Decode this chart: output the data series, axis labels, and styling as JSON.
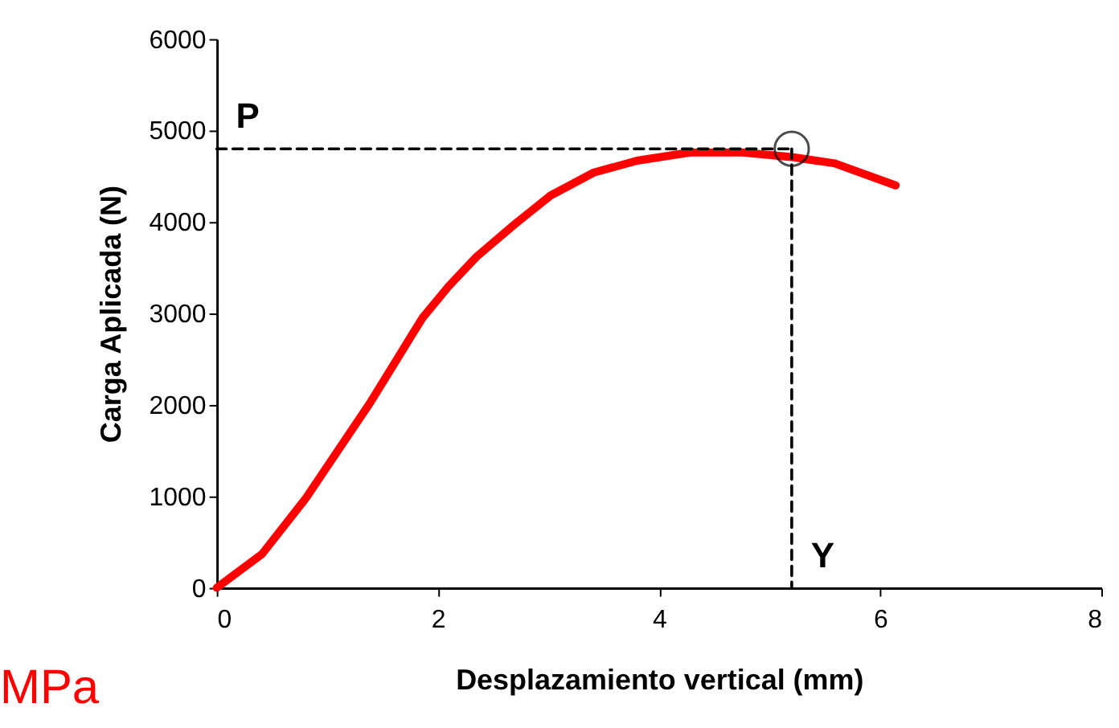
{
  "chart_data": {
    "type": "line",
    "xlabel": "Desplazamiento vertical (mm)",
    "ylabel": "Carga Aplicada (N)",
    "xlim": [
      0,
      8
    ],
    "xticks": [
      0,
      2,
      4,
      6,
      8
    ],
    "ylim": [
      0,
      6000
    ],
    "yticks": [
      0,
      1000,
      2000,
      3000,
      4000,
      5000,
      6000
    ],
    "grid": false,
    "series": [
      {
        "color": "#ff0000",
        "line_style": "solid",
        "marker": "none",
        "x": [
          0,
          0.41,
          0.8,
          1.09,
          1.38,
          1.62,
          1.86,
          2.1,
          2.35,
          2.69,
          3.02,
          3.41,
          3.8,
          4.28,
          4.76,
          5.2,
          5.59,
          6.14
        ],
        "values": [
          0,
          370,
          970,
          1490,
          2010,
          2480,
          2950,
          3300,
          3620,
          3970,
          4290,
          4540,
          4670,
          4760,
          4760,
          4710,
          4640,
          4400
        ]
      },
      {
        "color": "#000000",
        "line_style": "dashed",
        "marker": "none",
        "x": [
          0,
          5.2
        ],
        "values": [
          4800,
          4800
        ]
      },
      {
        "color": "#000000",
        "line_style": "dashed",
        "marker": "none",
        "x": [
          5.2,
          5.2
        ],
        "values": [
          4800,
          0
        ]
      },
      {
        "type": "scatter",
        "color": "#000000",
        "marker": "circle",
        "x": [
          5.2
        ],
        "values": [
          4800
        ]
      }
    ],
    "annotations": [
      {
        "text": "P",
        "x": 0,
        "y": 4800
      },
      {
        "text": "Y",
        "x": 5.2,
        "y": 0
      },
      "MPa"
    ]
  }
}
